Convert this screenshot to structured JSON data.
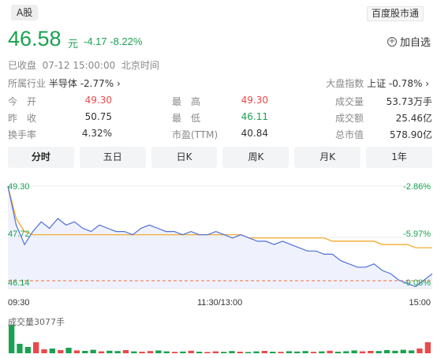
{
  "header": {
    "market_tag": "A股",
    "source_tag": "百度股市通"
  },
  "quote": {
    "price": "46.58",
    "unit": "元",
    "change": "-4.17 -8.22%",
    "add_watch": "加自选"
  },
  "status": {
    "text": "已收盘",
    "time": "07-12 15:00:00",
    "tz": "北京时间"
  },
  "industry": {
    "label": "所属行业",
    "name": "半导体",
    "change": "-2.77%"
  },
  "index": {
    "label": "大盘指数",
    "name": "上证",
    "change": "-0.78%"
  },
  "stats": {
    "open_label": "今　开",
    "open": "49.30",
    "prev_label": "昨　收",
    "prev": "50.75",
    "turnover_label": "换手率",
    "turnover": "4.32%",
    "high_label": "最　高",
    "high": "49.30",
    "low_label": "最　低",
    "low": "46.11",
    "pe_label": "市盈(TTM)",
    "pe": "40.84",
    "vol_label": "成交量",
    "vol": "53.73万手",
    "amount_label": "成交额",
    "amount": "25.46亿",
    "mcap_label": "总市值",
    "mcap": "578.90亿"
  },
  "tabs": [
    "分时",
    "五日",
    "日K",
    "周K",
    "月K",
    "1年"
  ],
  "active_tab": 0,
  "chart_labels": {
    "y_top_left": "49.30",
    "y_mid_left": "47.72",
    "y_bottom_left": "46.14",
    "y_top_right": "-2.86%",
    "y_mid_right": "-5.97%",
    "y_bottom_right": "-9.08%",
    "x_start": "09:30",
    "x_mid": "11:30/13:00",
    "x_end": "15:00",
    "volume_title": "成交量3077手"
  },
  "chart_data": {
    "type": "line",
    "ylim": [
      46.14,
      49.3
    ],
    "series": [
      {
        "values": [
          49.3,
          48.1,
          47.5,
          47.9,
          48.2,
          48.0,
          48.3,
          48.1,
          48.2,
          48.0,
          47.9,
          48.1,
          48.0,
          47.9,
          47.9,
          47.8,
          48.0,
          48.1,
          48.0,
          47.9,
          47.9,
          47.8,
          47.9,
          47.8,
          47.8,
          47.9,
          47.8,
          47.7,
          47.8,
          47.7,
          47.6,
          47.6,
          47.5,
          47.6,
          47.5,
          47.4,
          47.3,
          47.3,
          47.2,
          47.2,
          47.0,
          46.9,
          46.8,
          46.8,
          46.9,
          46.7,
          46.6,
          46.4,
          46.3,
          46.2,
          46.4,
          46.6
        ]
      },
      {
        "values": [
          49.3,
          48.3,
          47.9,
          47.8,
          47.8,
          47.8,
          47.8,
          47.8,
          47.8,
          47.8,
          47.8,
          47.8,
          47.8,
          47.8,
          47.8,
          47.8,
          47.8,
          47.8,
          47.8,
          47.8,
          47.8,
          47.8,
          47.8,
          47.8,
          47.8,
          47.8,
          47.8,
          47.8,
          47.8,
          47.7,
          47.7,
          47.7,
          47.7,
          47.7,
          47.7,
          47.7,
          47.7,
          47.7,
          47.7,
          47.6,
          47.6,
          47.6,
          47.6,
          47.6,
          47.6,
          47.5,
          47.5,
          47.5,
          47.5,
          47.4,
          47.4,
          47.4
        ]
      }
    ],
    "volume": [
      180,
      60,
      40,
      70,
      25,
      30,
      20,
      35,
      18,
      15,
      22,
      12,
      16,
      14,
      20,
      12,
      10,
      14,
      18,
      12,
      9,
      11,
      16,
      10,
      8,
      12,
      9,
      14,
      10,
      8,
      12,
      15,
      10,
      9,
      13,
      11,
      14,
      9,
      12,
      16,
      10,
      13,
      18,
      12,
      15,
      14,
      20,
      16,
      22,
      18,
      30,
      70
    ],
    "colors": {
      "price": "#4f6fd8",
      "avg": "#f2a41c",
      "prev_close": "#f26b3a",
      "up": "#e94a4a",
      "down": "#1aa251",
      "green_text": "#1aa251"
    }
  }
}
